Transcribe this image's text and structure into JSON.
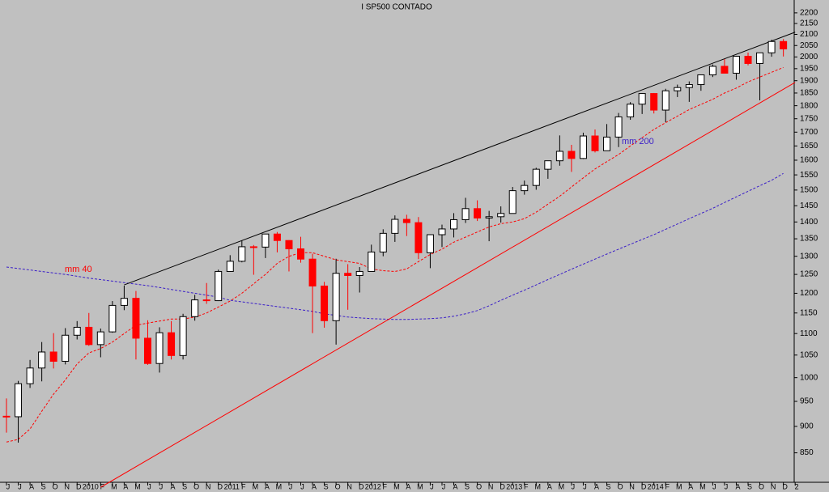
{
  "chart_data": {
    "type": "candlestick",
    "title": "I SP500 CONTADO",
    "log_scale": true,
    "categories": [
      "J",
      "J",
      "A",
      "S",
      "O",
      "N",
      "D",
      "2010",
      "F",
      "M",
      "A",
      "M",
      "J",
      "J",
      "A",
      "S",
      "O",
      "N",
      "D",
      "2011",
      "F",
      "M",
      "A",
      "M",
      "J",
      "J",
      "A",
      "S",
      "O",
      "N",
      "D",
      "2012",
      "F",
      "M",
      "A",
      "M",
      "J",
      "J",
      "A",
      "S",
      "O",
      "N",
      "D",
      "2013",
      "F",
      "M",
      "A",
      "M",
      "J",
      "J",
      "A",
      "S",
      "O",
      "N",
      "D",
      "2014",
      "F",
      "M",
      "A",
      "M",
      "J",
      "J",
      "A",
      "S",
      "O",
      "N",
      "D",
      "2"
    ],
    "up_color": "#000000",
    "down_color": "#ff0000",
    "open": [
      920,
      919,
      987,
      1021,
      1057,
      1036,
      1096,
      1115,
      1074,
      1104,
      1169,
      1187,
      1089,
      1031,
      1102,
      1049,
      1141,
      1183,
      1181,
      1258,
      1286,
      1327,
      1326,
      1364,
      1345,
      1321,
      1292,
      1219,
      1131,
      1253,
      1247,
      1258,
      1312,
      1366,
      1408,
      1398,
      1310,
      1362,
      1379,
      1407,
      1441,
      1412,
      1416,
      1426,
      1498,
      1515,
      1569,
      1598,
      1631,
      1606,
      1686,
      1633,
      1682,
      1757,
      1806,
      1848,
      1783,
      1859,
      1872,
      1884,
      1924,
      1960,
      1931,
      2003,
      1972,
      2018,
      2068,
      null
    ],
    "high": [
      956,
      993,
      1039,
      1080,
      1101,
      1113,
      1130,
      1150,
      1112,
      1180,
      1220,
      1206,
      1132,
      1115,
      1130,
      1148,
      1196,
      1227,
      1263,
      1303,
      1344,
      1332,
      1364,
      1370,
      1346,
      1356,
      1307,
      1230,
      1293,
      1278,
      1270,
      1333,
      1378,
      1420,
      1422,
      1415,
      1363,
      1392,
      1427,
      1475,
      1467,
      1434,
      1448,
      1510,
      1531,
      1574,
      1598,
      1688,
      1654,
      1698,
      1710,
      1730,
      1772,
      1814,
      1849,
      1850,
      1867,
      1884,
      1897,
      1924,
      1968,
      1991,
      2005,
      2019,
      2019,
      2076,
      2079,
      null
    ],
    "low": [
      888,
      869,
      978,
      992,
      1020,
      1029,
      1086,
      1071,
      1045,
      1102,
      1157,
      1040,
      1028,
      1011,
      1040,
      1040,
      1131,
      1173,
      1180,
      1257,
      1283,
      1249,
      1295,
      1311,
      1258,
      1282,
      1101,
      1114,
      1074,
      1158,
      1202,
      1258,
      1300,
      1341,
      1358,
      1292,
      1267,
      1326,
      1354,
      1397,
      1403,
      1343,
      1398,
      1426,
      1485,
      1501,
      1537,
      1581,
      1560,
      1604,
      1627,
      1633,
      1646,
      1746,
      1768,
      1770,
      1737,
      1834,
      1815,
      1859,
      1915,
      1931,
      1904,
      1964,
      1821,
      2001,
      2002,
      null
    ],
    "close": [
      919,
      987,
      1021,
      1057,
      1036,
      1096,
      1115,
      1074,
      1104,
      1169,
      1187,
      1089,
      1031,
      1102,
      1049,
      1141,
      1183,
      1181,
      1258,
      1286,
      1327,
      1326,
      1364,
      1345,
      1321,
      1292,
      1219,
      1131,
      1253,
      1247,
      1258,
      1312,
      1366,
      1408,
      1398,
      1310,
      1362,
      1379,
      1407,
      1441,
      1412,
      1416,
      1426,
      1498,
      1515,
      1569,
      1598,
      1631,
      1606,
      1686,
      1633,
      1682,
      1757,
      1806,
      1848,
      1783,
      1859,
      1872,
      1884,
      1924,
      1960,
      1931,
      2003,
      1972,
      2018,
      2068,
      2035,
      null
    ],
    "series": [
      {
        "name": "mm 40",
        "color": "#ff0000",
        "values": [
          870,
          875,
          895,
          930,
          965,
          995,
          1030,
          1055,
          1065,
          1080,
          1100,
          1120,
          1125,
          1130,
          1135,
          1135,
          1140,
          1150,
          1165,
          1180,
          1200,
          1225,
          1250,
          1280,
          1300,
          1310,
          1310,
          1300,
          1290,
          1285,
          1280,
          1265,
          1260,
          1258,
          1265,
          1285,
          1305,
          1320,
          1340,
          1355,
          1370,
          1385,
          1395,
          1400,
          1410,
          1430,
          1455,
          1480,
          1510,
          1540,
          1570,
          1595,
          1620,
          1650,
          1680,
          1710,
          1735,
          1760,
          1785,
          1805,
          1825,
          1850,
          1870,
          1895,
          1915,
          1935,
          1955,
          null
        ]
      },
      {
        "name": "mm 200",
        "color": "#3a1ec8",
        "values": [
          1270,
          1266,
          1262,
          1258,
          1254,
          1250,
          1245,
          1240,
          1236,
          1232,
          1228,
          1224,
          1220,
          1215,
          1210,
          1205,
          1200,
          1195,
          1190,
          1182,
          1178,
          1174,
          1170,
          1166,
          1162,
          1158,
          1154,
          1148,
          1144,
          1140,
          1138,
          1136,
          1135,
          1134,
          1134,
          1135,
          1136,
          1138,
          1142,
          1148,
          1156,
          1168,
          1182,
          1195,
          1208,
          1222,
          1236,
          1250,
          1264,
          1278,
          1292,
          1306,
          1320,
          1334,
          1348,
          1362,
          1378,
          1394,
          1410,
          1426,
          1442,
          1460,
          1478,
          1496,
          1514,
          1532,
          1555,
          null
        ]
      }
    ],
    "trend_lines": [
      {
        "color": "#000000",
        "x": [
          10,
          67
        ],
        "values": [
          1222,
          2110
        ]
      },
      {
        "color": "#ff0000",
        "x": [
          8,
          67
        ],
        "values": [
          789,
          1893
        ]
      }
    ],
    "ylim": [
      781,
      2262
    ],
    "yticks": [
      850,
      900,
      950,
      1000,
      1050,
      1100,
      1150,
      1200,
      1250,
      1300,
      1350,
      1400,
      1450,
      1500,
      1550,
      1600,
      1650,
      1700,
      1750,
      1800,
      1850,
      1900,
      1950,
      2000,
      2050,
      2100,
      2150,
      2200
    ]
  }
}
